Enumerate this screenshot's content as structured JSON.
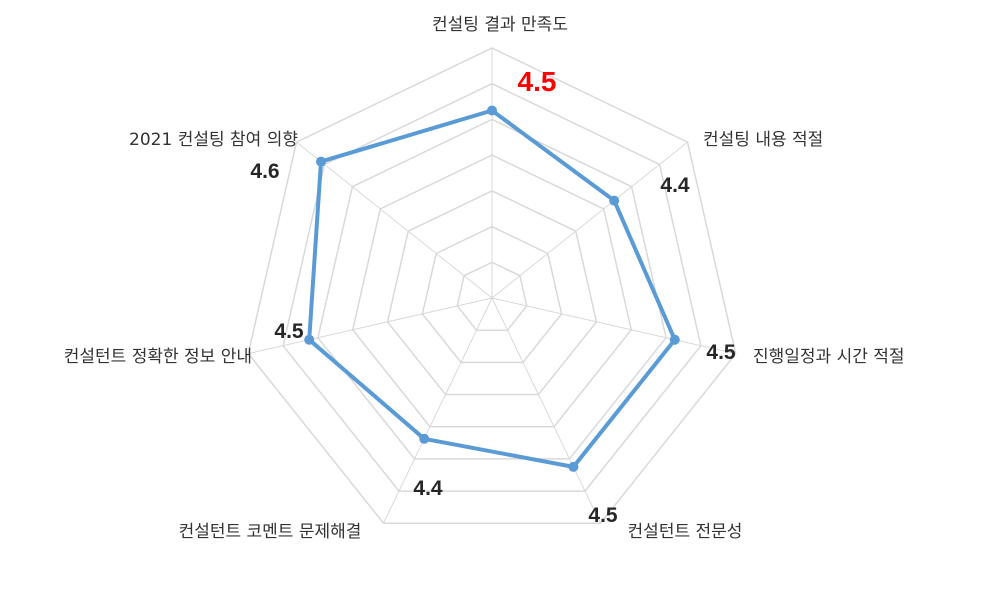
{
  "chart_data": {
    "type": "radar",
    "categories": [
      "컨설팅 결과 만족도",
      "컨설팅 내용 적절",
      "진행일정과 시간 적절",
      "컨설턴트 전문성",
      "컨설턴트 코멘트 문제해결",
      "컨설턴트 정확한 정보 안내",
      "2021 컨설팅 참여 의향"
    ],
    "values": [
      4.5,
      4.4,
      4.5,
      4.5,
      4.4,
      4.5,
      4.6
    ],
    "value_labels": [
      "4.5",
      "4.4",
      "4.5",
      "4.5",
      "4.4",
      "4.5",
      "4.6"
    ],
    "highlight_index": 0,
    "rlim": [
      3.9,
      4.7
    ],
    "grid_rings": 7,
    "series_color": "#5B9BD5",
    "grid_color": "#D9D9D9",
    "highlight_color": "#FF0000"
  }
}
